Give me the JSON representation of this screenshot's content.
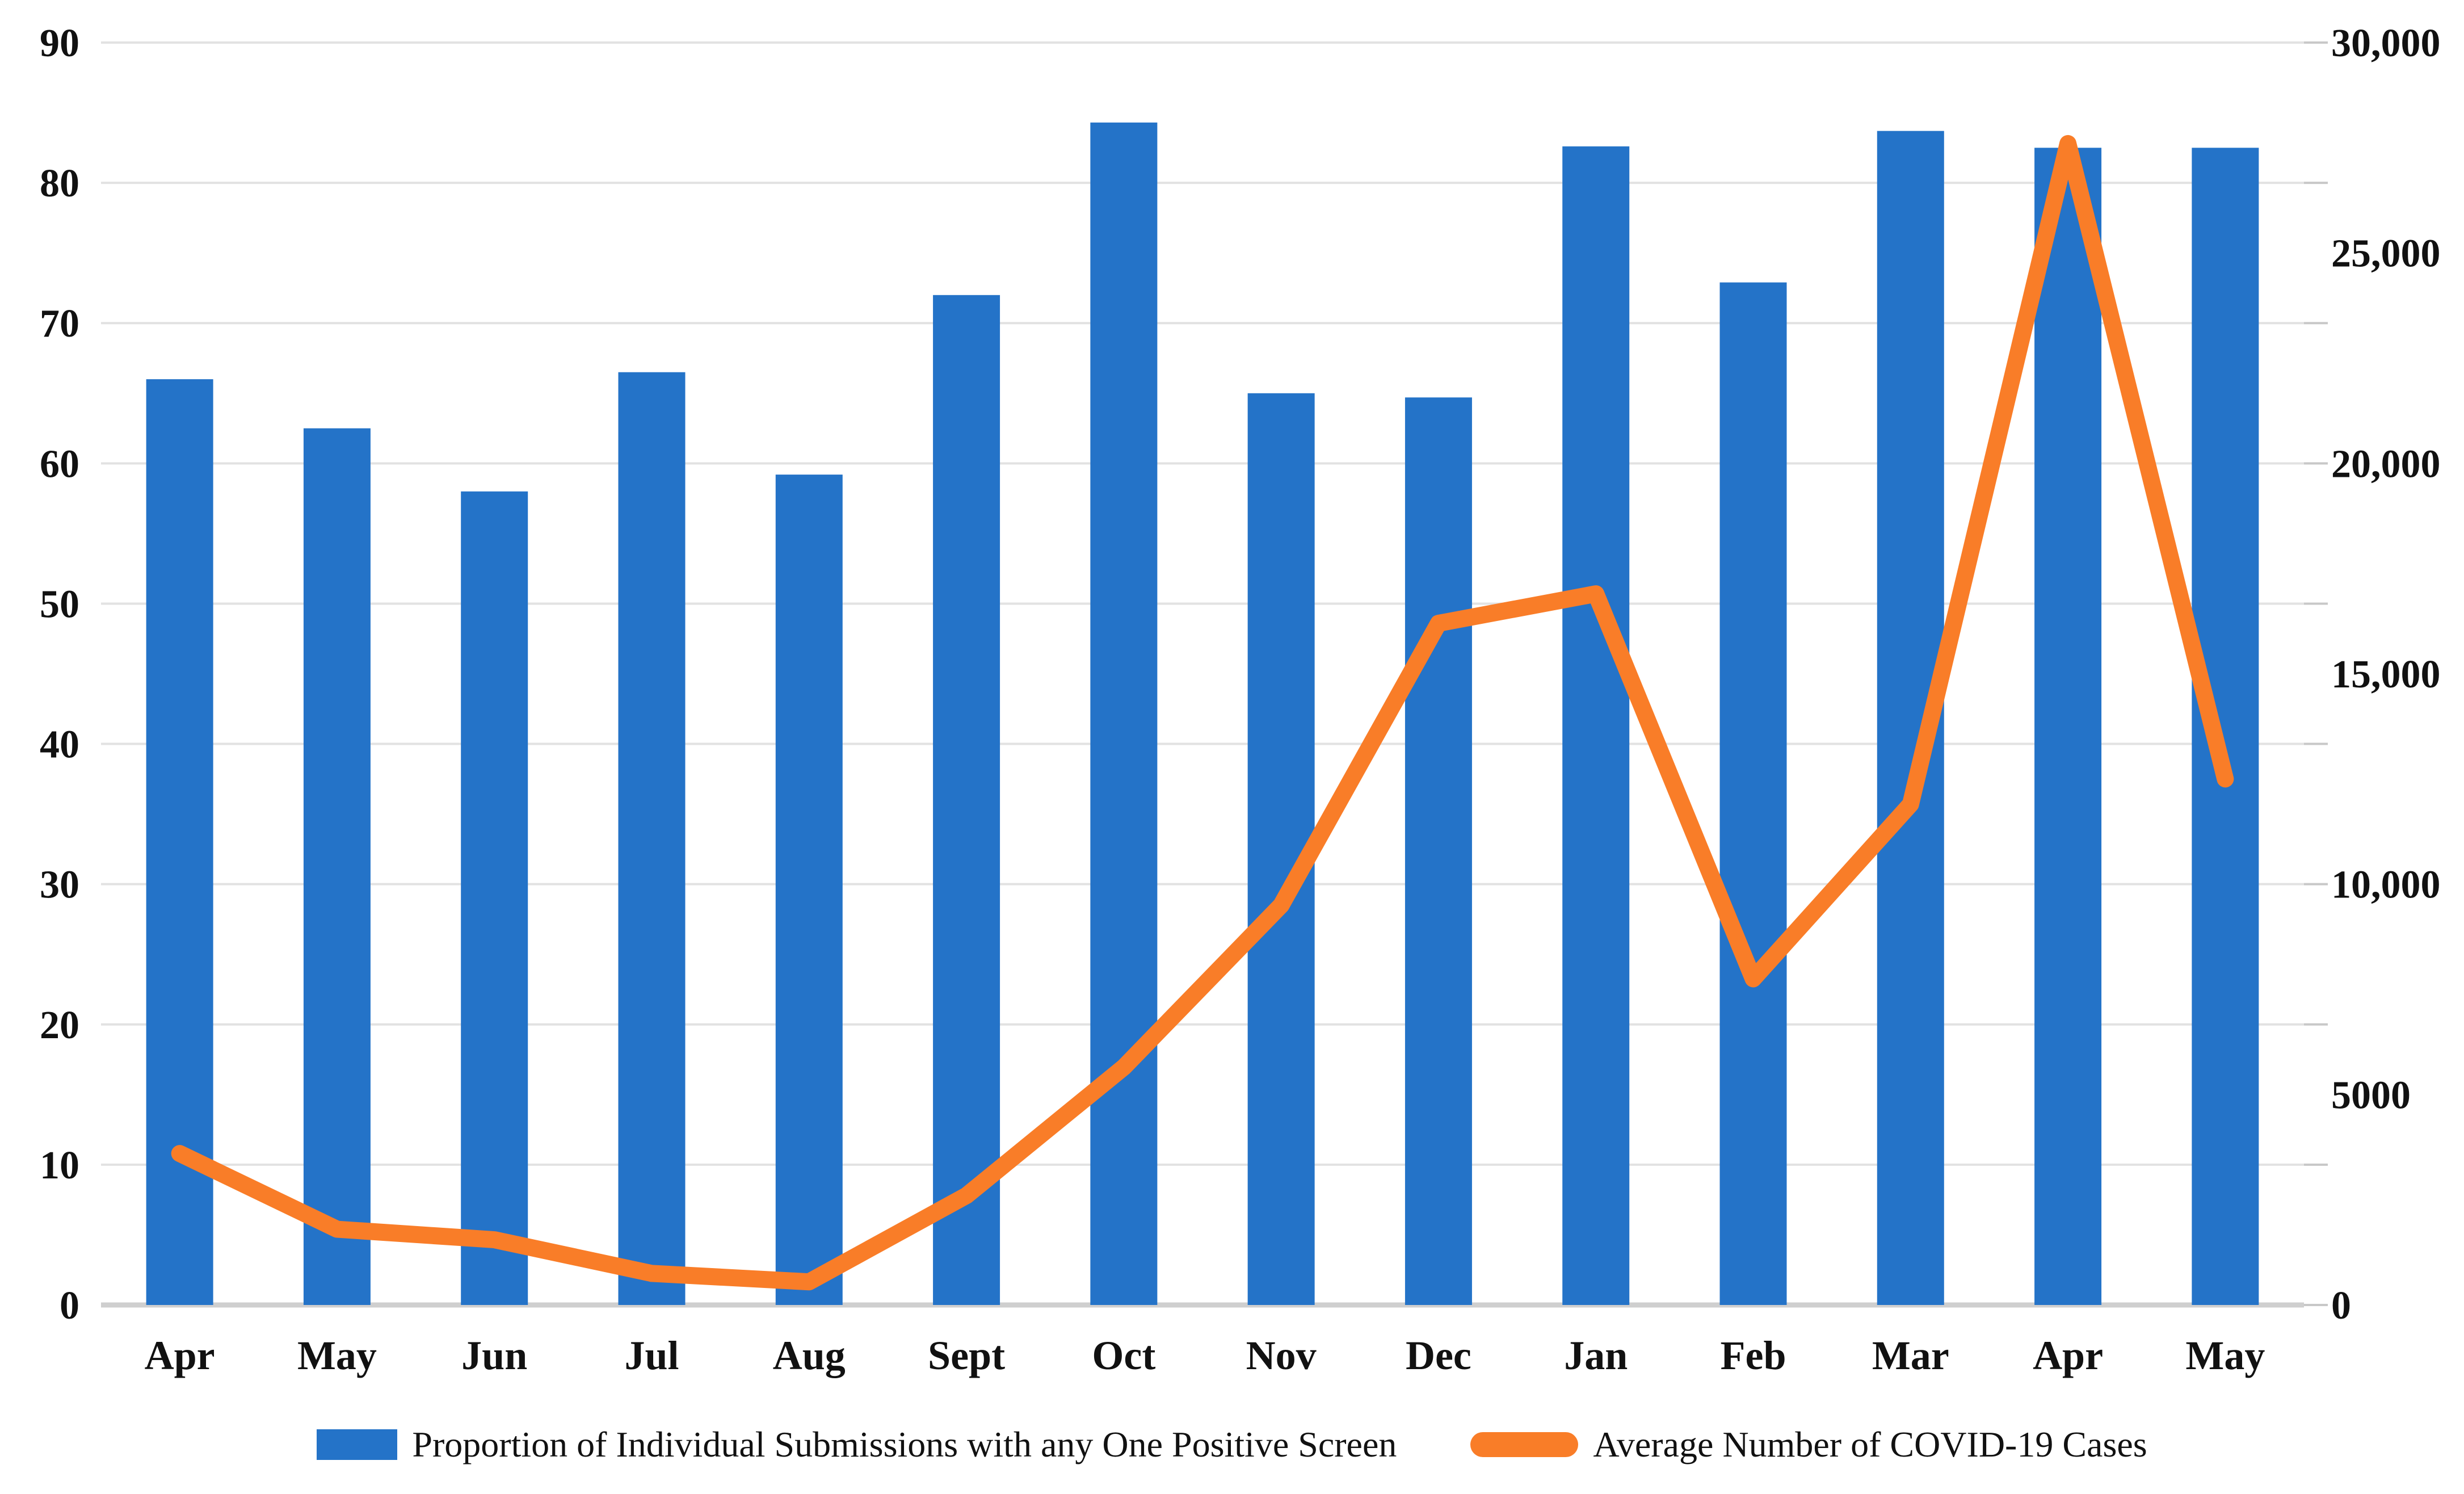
{
  "colors": {
    "bar": "#2473C8",
    "line": "#F97D28",
    "gridline": "#E2E2E2",
    "axis_baseline": "#CFCFCF",
    "tick": "#C8C8C8",
    "text": "#111111",
    "background": "#FFFFFF"
  },
  "chart_data": {
    "type": "bar",
    "subtype": "combo-bar-line-dual-axis",
    "title": "",
    "xlabel": "",
    "ylabel": "",
    "categories": [
      "Apr",
      "May",
      "Jun",
      "Jul",
      "Aug",
      "Sept",
      "Oct",
      "Nov",
      "Dec",
      "Jan",
      "Feb",
      "Mar",
      "Apr",
      "May"
    ],
    "series": [
      {
        "name": "Proportion of Individual Submissions with any One Positive Screen",
        "type": "bar",
        "axis": "left",
        "values": [
          66,
          62.5,
          58,
          66.5,
          59.2,
          72,
          84.3,
          65,
          64.7,
          82.6,
          72.9,
          83.7,
          82.5,
          82.5
        ]
      },
      {
        "name": "Average Number of COVID-19 Cases",
        "type": "line",
        "axis": "right",
        "values": [
          3600,
          1800,
          1550,
          750,
          550,
          2600,
          5650,
          9500,
          16200,
          16900,
          7750,
          11900,
          27600,
          12500
        ]
      }
    ],
    "left_axis": {
      "min": 0,
      "max": 90,
      "step": 10,
      "tick_labels": [
        "90",
        "80",
        "70",
        "60",
        "50",
        "40",
        "30",
        "20",
        "10",
        "0"
      ]
    },
    "right_axis": {
      "min": 0,
      "max": 30000,
      "step": 5000,
      "tick_labels": [
        "30,000",
        "25,000",
        "20,000",
        "15,000",
        "10,000",
        "5000",
        "0"
      ]
    },
    "grid": true,
    "legend_position": "bottom"
  },
  "legend": {
    "items": [
      {
        "swatch": "bar-swatch",
        "label": "Proportion of Individual Submissions with any One Positive Screen"
      },
      {
        "swatch": "line-swatch",
        "label": "Average Number of COVID-19 Cases"
      }
    ]
  }
}
